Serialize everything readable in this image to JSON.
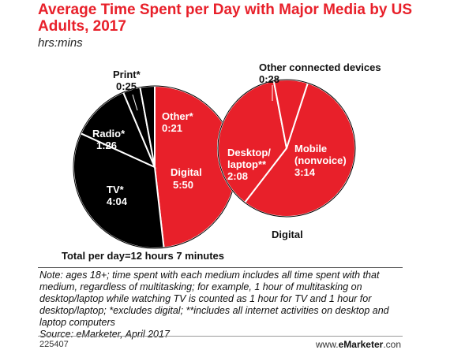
{
  "title": "Average Time Spent per Day with Major Media by US Adults, 2017",
  "subtitle": "hrs:mins",
  "total": "Total per day=12 hours 7 minutes",
  "note": "Note: ages 18+; time spent with each medium includes all time spent with that medium, regardless of multitasking; for example, 1 hour of multitasking on desktop/laptop while watching TV is counted as 1 hour for TV and 1 hour for desktop/laptop; *excludes digital; **includes all internet activities on desktop and laptop computers",
  "source": "Source: eMarketer, April 2017",
  "footer": {
    "id": "225407",
    "brand_prefix": "www.",
    "brand_name": "eMarketer",
    "brand_suffix": ".con"
  },
  "colors": {
    "red": "#e8202a",
    "black": "#000000"
  },
  "chart_data": [
    {
      "type": "pie",
      "unit": "hrs:mins",
      "slices": [
        {
          "name": "Digital",
          "value_label": "5:50",
          "minutes": 350,
          "color": "#e8202a"
        },
        {
          "name": "TV*",
          "value_label": "4:04",
          "minutes": 244,
          "color": "#000000"
        },
        {
          "name": "Radio*",
          "value_label": "1:26",
          "minutes": 86,
          "color": "#000000"
        },
        {
          "name": "Print*",
          "value_label": "0:25",
          "minutes": 25,
          "color": "#000000"
        },
        {
          "name": "Other*",
          "value_label": "0:21",
          "minutes": 21,
          "color": "#000000"
        }
      ]
    },
    {
      "type": "pie",
      "title": "Digital",
      "unit": "hrs:mins",
      "slices": [
        {
          "name": "Mobile (nonvoice)",
          "value_label": "3:14",
          "minutes": 194,
          "color": "#e8202a"
        },
        {
          "name": "Desktop/ laptop**",
          "value_label": "2:08",
          "minutes": 128,
          "color": "#e8202a"
        },
        {
          "name": "Other connected devices",
          "value_label": "0:28",
          "minutes": 28,
          "color": "#e8202a"
        }
      ]
    }
  ]
}
